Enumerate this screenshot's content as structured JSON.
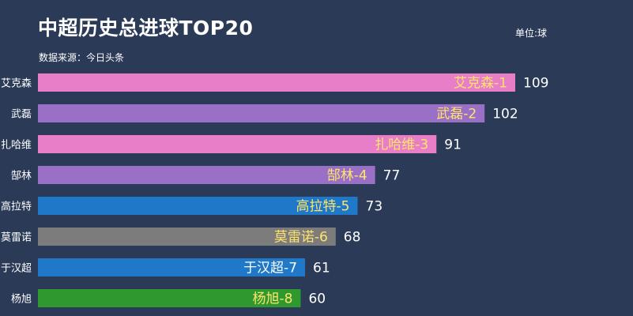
{
  "header": {
    "title": "中超历史总进球TOP20",
    "source": "数据来源：今日头条",
    "unit": "单位:球"
  },
  "chart_data": {
    "type": "bar",
    "orientation": "horizontal",
    "title": "中超历史总进球TOP20",
    "unit": "单位:球",
    "categories": [
      "艾克森",
      "武磊",
      "扎哈维",
      "郜林",
      "高拉特",
      "莫雷诺",
      "于汉超",
      "杨旭"
    ],
    "values": [
      109,
      102,
      91,
      77,
      73,
      68,
      61,
      60
    ],
    "bar_labels": [
      "艾克森-1",
      "武磊-2",
      "扎哈维-3",
      "郜林-4",
      "高拉特-5",
      "莫雷诺-6",
      "于汉超-7",
      "杨旭-8"
    ],
    "colors": [
      "#e87ec8",
      "#9a6fc6",
      "#e87ec8",
      "#9a6fc6",
      "#1f78c8",
      "#7c7c7c",
      "#1f78c8",
      "#2f9930"
    ],
    "label_colors": [
      "#ffe46b",
      "#ffe46b",
      "#ffe46b",
      "#ffe46b",
      "#ffe46b",
      "#ffe46b",
      "#ffffff",
      "#ffe46b"
    ],
    "xlim": [
      0,
      109
    ],
    "grid": false,
    "legend": "none"
  }
}
